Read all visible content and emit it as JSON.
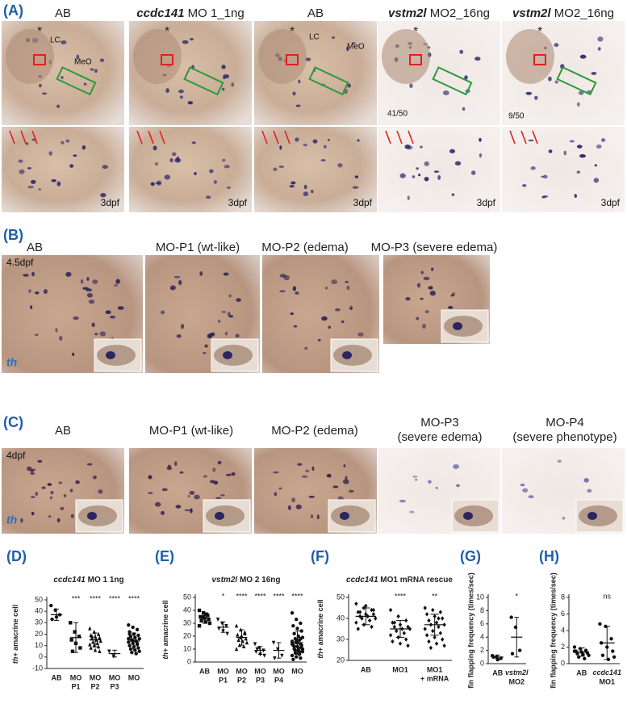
{
  "panel_a": {
    "label": "(A)",
    "headers": [
      "AB",
      {
        "gene": "ccdc141",
        "text": "MO 1_1ng"
      },
      "AB",
      {
        "gene": "vstm2l",
        "text": "MO2_16ng"
      },
      {
        "gene": "vstm2l",
        "text": "MO2_16ng"
      }
    ],
    "notes": [
      "LC",
      "MeO",
      "LC",
      "MeO",
      "41/50",
      "9/50"
    ],
    "stages": [
      "3dpf",
      "3dpf",
      "3dpf",
      "3dpf",
      "3dpf"
    ]
  },
  "panel_b": {
    "label": "(B)",
    "headers": [
      "AB",
      "MO-P1 (wt-like)",
      "MO-P2 (edema)",
      "MO-P3 (severe edema)"
    ],
    "stage": "4.5dpf",
    "probe": "th"
  },
  "panel_c": {
    "label": "(C)",
    "headers": [
      [
        "AB"
      ],
      [
        "MO-P1 (wt-like)"
      ],
      [
        "MO-P2 (edema)"
      ],
      [
        "MO-P3",
        "(severe edema)"
      ],
      [
        "MO-P4",
        "(severe phenotype)"
      ]
    ],
    "stage": "4dpf",
    "probe": "th"
  },
  "chart_data": [
    {
      "type": "dot",
      "panel": "(D)",
      "title": {
        "gene": "ccdc141",
        "text": "MO 1 1ng"
      },
      "y_label": {
        "gene": "th+",
        "text": "amacrine cell"
      },
      "categories": [
        [
          "AB"
        ],
        [
          "MO",
          "P1"
        ],
        [
          "MO",
          "P2"
        ],
        [
          "MO",
          "P3"
        ],
        [
          "MO"
        ]
      ],
      "significance": [
        null,
        "***",
        "****",
        "****",
        "****"
      ],
      "markers": [
        "circle",
        "square",
        "triangle",
        "down",
        "circle"
      ],
      "points": [
        [
          45,
          41,
          37,
          33,
          35
        ],
        [
          30,
          22,
          18,
          15,
          12,
          8,
          5
        ],
        [
          25,
          22,
          20,
          19,
          18,
          17,
          16,
          15,
          14,
          13,
          12,
          11,
          10,
          9,
          8,
          6,
          5,
          18,
          15
        ],
        [
          5,
          1
        ],
        [
          28,
          26,
          24,
          22,
          20,
          19,
          18,
          17,
          16,
          15,
          14,
          13,
          12,
          11,
          10,
          9,
          8,
          7,
          6,
          5,
          4,
          3,
          16,
          14,
          12,
          20
        ]
      ],
      "means": [
        37,
        17,
        15,
        3,
        14
      ],
      "sd": [
        5,
        13,
        6,
        3,
        7
      ],
      "ylim": [
        -10,
        50
      ],
      "yticks": [
        -10,
        0,
        10,
        20,
        30,
        40,
        50
      ]
    },
    {
      "type": "dot",
      "panel": "(E)",
      "title": {
        "gene": "vstm2l",
        "text": "MO 2 16ng"
      },
      "y_label": {
        "gene": "th+",
        "text": "amacrine cell"
      },
      "categories": [
        [
          "AB"
        ],
        [
          "MO",
          "P1"
        ],
        [
          "MO",
          "P2"
        ],
        [
          "MO",
          "P3"
        ],
        [
          "MO",
          "P4"
        ],
        [
          "MO"
        ]
      ],
      "significance": [
        null,
        "*",
        "****",
        "****",
        "****",
        "****"
      ],
      "markers": [
        "square",
        "down",
        "triangle",
        "down",
        "down",
        "circle"
      ],
      "points": [
        [
          40,
          38,
          36,
          35,
          34,
          33,
          32,
          31,
          30,
          35,
          37,
          28
        ],
        [
          33,
          30,
          28,
          26,
          24,
          22
        ],
        [
          28,
          25,
          23,
          21,
          20,
          18,
          17,
          16,
          15,
          13,
          12,
          10,
          19,
          22
        ],
        [
          14,
          11,
          9,
          8,
          6,
          5,
          10
        ],
        [
          15,
          10,
          5,
          3
        ],
        [
          38,
          33,
          30,
          28,
          26,
          24,
          22,
          20,
          19,
          18,
          17,
          16,
          15,
          14,
          13,
          12,
          11,
          10,
          9,
          8,
          7,
          6,
          5,
          4,
          3,
          2,
          15,
          13,
          12,
          11,
          10,
          9,
          8,
          14,
          16,
          18
        ]
      ],
      "means": [
        34,
        27,
        19,
        9,
        9,
        15
      ],
      "sd": [
        4,
        4,
        6,
        3,
        6,
        9
      ],
      "ylim": [
        0,
        50
      ],
      "yticks": [
        0,
        10,
        20,
        30,
        40,
        50
      ]
    },
    {
      "type": "dot",
      "panel": "(F)",
      "title": {
        "gene": "ccdc141",
        "text": "MO1 mRNA rescue"
      },
      "y_label": {
        "gene": "th+",
        "text": "amacrine cell"
      },
      "categories": [
        [
          "AB"
        ],
        [
          "MO1"
        ],
        [
          "MO1",
          "+ mRNA"
        ]
      ],
      "significance": [
        null,
        "****",
        "**"
      ],
      "markers": [
        "diamond",
        "diamond",
        "diamond"
      ],
      "points": [
        [
          47,
          45,
          44,
          43,
          42,
          42,
          41,
          41,
          40,
          40,
          39,
          38,
          37,
          36,
          35,
          46,
          44,
          43
        ],
        [
          44,
          41,
          39,
          38,
          37,
          36,
          36,
          35,
          35,
          34,
          33,
          32,
          31,
          30,
          29,
          28,
          27,
          38
        ],
        [
          45,
          44,
          43,
          42,
          41,
          40,
          39,
          38,
          37,
          37,
          36,
          35,
          34,
          33,
          32,
          31,
          30,
          29,
          28,
          27,
          26,
          40
        ]
      ],
      "means": [
        41,
        35,
        37
      ],
      "sd": [
        4,
        4,
        5
      ],
      "ylim": [
        20,
        50
      ],
      "yticks": [
        20,
        30,
        40,
        50
      ]
    },
    {
      "type": "dot",
      "panel": "(G)",
      "y_label": "fin flapping frequency (times/sec)",
      "categories": [
        [
          "AB"
        ],
        [
          {
            "gene": "vstm2l"
          },
          "MO2"
        ]
      ],
      "significance": [
        null,
        "*"
      ],
      "markers": [
        "circle",
        "circle"
      ],
      "points": [
        [
          1.2,
          1,
          0.8,
          1,
          0.6
        ],
        [
          7,
          5.5,
          2,
          1.5
        ]
      ],
      "means": [
        1,
        4
      ],
      "sd": [
        0.3,
        3
      ],
      "ylim": [
        0,
        10
      ],
      "yticks": [
        0,
        2,
        4,
        6,
        8,
        10
      ]
    },
    {
      "type": "dot",
      "panel": "(H)",
      "y_label": "fin flapping frequency (times/sec)",
      "categories": [
        [
          "AB"
        ],
        [
          {
            "gene": "ccdc141"
          },
          "MO1"
        ]
      ],
      "significance": [
        null,
        "ns"
      ],
      "markers": [
        "circle",
        "circle"
      ],
      "points": [
        [
          2,
          1.8,
          1.6,
          1.5,
          1.4,
          1.3,
          1.2,
          1.1,
          1,
          0.8,
          0.6,
          1.5
        ],
        [
          4.8,
          4.5,
          3,
          2.5,
          2,
          1.5,
          1,
          0.5,
          0.8
        ]
      ],
      "means": [
        1.4,
        2.5
      ],
      "sd": [
        0.5,
        2
      ],
      "ylim": [
        0,
        8
      ],
      "yticks": [
        0,
        2,
        4,
        6,
        8
      ]
    }
  ]
}
